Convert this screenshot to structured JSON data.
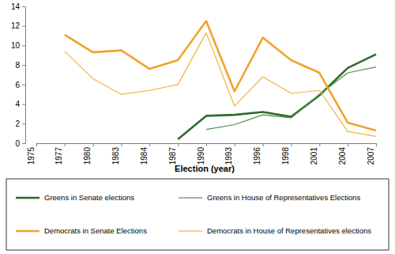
{
  "chart_data": {
    "type": "line",
    "x_label": "Election (year)",
    "categories": [
      "1975",
      "1977",
      "1980",
      "1983",
      "1984",
      "1987",
      "1990",
      "1993",
      "1996",
      "1998",
      "2001",
      "2004",
      "2007"
    ],
    "series": [
      {
        "name": "Greens in Senate elections",
        "color": "#2e6b2e",
        "line_style": "thick",
        "values": [
          null,
          null,
          null,
          null,
          null,
          0.4,
          2.8,
          2.9,
          3.2,
          2.7,
          4.9,
          7.7,
          9.1
        ]
      },
      {
        "name": "Greens in House of Representatives Elections",
        "color": "#4a8f4a",
        "line_style": "thin",
        "values": [
          null,
          null,
          null,
          null,
          null,
          null,
          1.4,
          1.9,
          2.9,
          2.6,
          5.0,
          7.2,
          7.8
        ]
      },
      {
        "name": "Democrats in Senate Elections",
        "color": "#f2a32a",
        "line_style": "thick",
        "values": [
          null,
          11.1,
          9.3,
          9.5,
          7.6,
          8.5,
          12.5,
          5.3,
          10.8,
          8.5,
          7.2,
          2.1,
          1.3
        ]
      },
      {
        "name": "Democrats in House of Representatives elections",
        "color": "#f5b040",
        "line_style": "thin",
        "values": [
          null,
          9.4,
          6.6,
          5.0,
          5.4,
          6.0,
          11.3,
          3.8,
          6.8,
          5.1,
          5.4,
          1.2,
          0.7
        ]
      }
    ],
    "ylim": [
      0,
      14
    ],
    "yticks": [
      0,
      2,
      4,
      6,
      8,
      10,
      12,
      14
    ],
    "grid": false,
    "legend": "bottom"
  }
}
